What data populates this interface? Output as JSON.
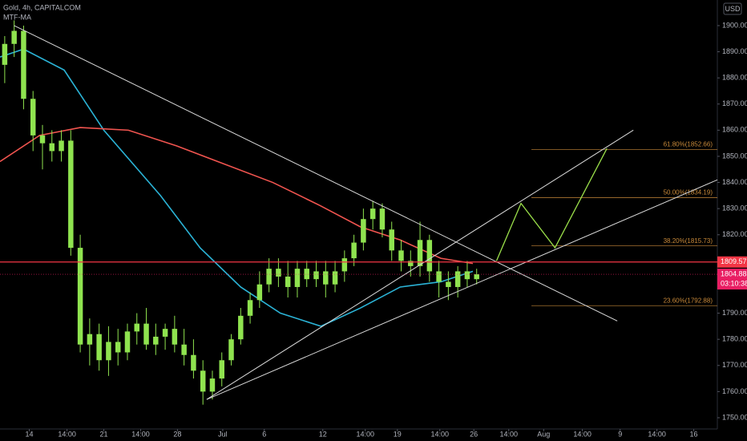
{
  "chart_data": {
    "type": "candlestick",
    "title": "Gold, 4h, CAPITALCOM",
    "indicator": "MTF-MA",
    "currency": "USD",
    "candle_color": "#8fe34f",
    "background": "#000000",
    "xlim": [
      -0.5,
      75.5
    ],
    "ylim": [
      1745.7,
      1909.8
    ],
    "open": [
      1885,
      1893,
      1898,
      1872,
      1858,
      1855,
      1852,
      1856,
      1815,
      1778,
      1782,
      1772,
      1779,
      1775,
      1783,
      1786,
      1778,
      1781,
      1784,
      1778,
      1774,
      1768,
      1760,
      1765,
      1772,
      1780,
      1789,
      1795,
      1801,
      1807,
      1804,
      1800,
      1807,
      1803,
      1806,
      1801,
      1806,
      1811,
      1817,
      1826,
      1830,
      1822,
      1814,
      1810,
      1808,
      1818,
      1806,
      1802,
      1800,
      1806,
      1803
    ],
    "high": [
      1896,
      1902,
      1900,
      1875,
      1862,
      1860,
      1860,
      1860,
      1820,
      1788,
      1786,
      1785,
      1784,
      1786,
      1790,
      1792,
      1786,
      1786,
      1789,
      1784,
      1780,
      1772,
      1768,
      1775,
      1782,
      1792,
      1798,
      1806,
      1811,
      1811,
      1810,
      1810,
      1810,
      1810,
      1810,
      1810,
      1814,
      1820,
      1830,
      1833,
      1832,
      1825,
      1818,
      1814,
      1825,
      1820,
      1810,
      1806,
      1808,
      1810,
      1807
    ],
    "low": [
      1878,
      1888,
      1868,
      1852,
      1845,
      1848,
      1848,
      1812,
      1775,
      1770,
      1768,
      1766,
      1770,
      1772,
      1778,
      1776,
      1774,
      1776,
      1775,
      1770,
      1765,
      1755,
      1757,
      1762,
      1770,
      1778,
      1786,
      1792,
      1798,
      1800,
      1796,
      1796,
      1800,
      1800,
      1796,
      1798,
      1802,
      1808,
      1814,
      1822,
      1819,
      1810,
      1806,
      1804,
      1804,
      1802,
      1796,
      1795,
      1796,
      1800,
      1801
    ],
    "close": [
      1893,
      1898,
      1872,
      1858,
      1855,
      1852,
      1856,
      1815,
      1778,
      1782,
      1772,
      1779,
      1775,
      1783,
      1786,
      1778,
      1781,
      1784,
      1778,
      1774,
      1768,
      1760,
      1765,
      1772,
      1780,
      1789,
      1795,
      1801,
      1807,
      1804,
      1800,
      1807,
      1803,
      1806,
      1801,
      1806,
      1811,
      1817,
      1826,
      1830,
      1822,
      1814,
      1810,
      1808,
      1818,
      1806,
      1802,
      1800,
      1806,
      1803,
      1804.88
    ],
    "series": [
      {
        "color": "#2bb3d6",
        "x": [
          -0.5,
          2.0,
          6.3,
          10.5,
          16.5,
          20.7,
          25.0,
          29.2,
          33.5,
          37.7,
          41.9,
          46.2,
          49.6
        ],
        "values": [
          1888,
          1891,
          1883,
          1860,
          1835,
          1815,
          1800,
          1790,
          1785,
          1792,
          1800,
          1802,
          1806
        ]
      },
      {
        "color": "#f0544f",
        "x": [
          -0.5,
          3.7,
          8.0,
          13.1,
          18.2,
          23.3,
          28.4,
          33.5,
          37.7,
          41.9,
          46.2,
          49.6
        ],
        "values": [
          1848,
          1858,
          1861,
          1860,
          1854,
          1847,
          1840,
          1831,
          1823,
          1818,
          1811,
          1809
        ]
      },
      {
        "color": "#9be04a",
        "x": [
          52.1,
          54.7,
          58.3,
          63.8
        ],
        "values": [
          1810,
          1832,
          1815,
          1853
        ]
      }
    ],
    "trend_lines": [
      {
        "color": "#d8d8d8",
        "x": [
          1.0,
          64.9
        ],
        "values": [
          1900,
          1787
        ]
      },
      {
        "color": "#d8d8d8",
        "x": [
          21.4,
          66.6
        ],
        "values": [
          1757,
          1860
        ]
      },
      {
        "color": "#d8d8d8",
        "x": [
          21.4,
          75.5
        ],
        "values": [
          1757,
          1841
        ]
      }
    ],
    "fib_color": "#c98a3a",
    "fib_x": [
      55.8,
      75.5
    ],
    "fib_levels": [
      {
        "value": 1852.66,
        "label": "61.80%(1852.66)"
      },
      {
        "value": 1834.19,
        "label": "50.00%(1834.19)"
      },
      {
        "value": 1815.73,
        "label": "38.20%(1815.73)"
      },
      {
        "value": 1792.88,
        "label": "23.60%(1792.88)"
      }
    ],
    "level_line": 1809.57,
    "level_color": "#f23645",
    "price_color": "#e91e63",
    "countdown": "03:10:38",
    "yticks": [
      {
        "value": 1750,
        "label": "1750.00"
      },
      {
        "value": 1760,
        "label": "1760.00"
      },
      {
        "value": 1770,
        "label": "1770.00"
      },
      {
        "value": 1780,
        "label": "1780.00"
      },
      {
        "value": 1790,
        "label": "1790.00"
      },
      {
        "value": 1800,
        "label": "1800.00"
      },
      {
        "value": 1810,
        "label": "1810.00"
      },
      {
        "value": 1820,
        "label": "1820.00"
      },
      {
        "value": 1830,
        "label": "1830.00"
      },
      {
        "value": 1840,
        "label": "1840.00"
      },
      {
        "value": 1850,
        "label": "1850.00"
      },
      {
        "value": 1860,
        "label": "1860.00"
      },
      {
        "value": 1870,
        "label": "1870.00"
      },
      {
        "value": 1880,
        "label": "1880.00"
      },
      {
        "value": 1890,
        "label": "1890.00"
      },
      {
        "value": 1900,
        "label": "1900.00"
      }
    ],
    "xticks": [
      {
        "value": 2.6,
        "label": "14"
      },
      {
        "value": 6.6,
        "label": "14:00"
      },
      {
        "value": 10.5,
        "label": "21"
      },
      {
        "value": 14.4,
        "label": "14:00"
      },
      {
        "value": 18.3,
        "label": "28"
      },
      {
        "value": 23.1,
        "label": "Jul"
      },
      {
        "value": 27.5,
        "label": "6"
      },
      {
        "value": 33.7,
        "label": "12"
      },
      {
        "value": 38.2,
        "label": "14:00"
      },
      {
        "value": 41.6,
        "label": "19"
      },
      {
        "value": 46.1,
        "label": "14:00"
      },
      {
        "value": 49.7,
        "label": "26"
      },
      {
        "value": 53.4,
        "label": "14:00"
      },
      {
        "value": 57.1,
        "label": "Aug"
      },
      {
        "value": 61.2,
        "label": "14:00"
      },
      {
        "value": 65.2,
        "label": "9"
      },
      {
        "value": 69.1,
        "label": "14:00"
      },
      {
        "value": 73.0,
        "label": "16"
      }
    ]
  }
}
